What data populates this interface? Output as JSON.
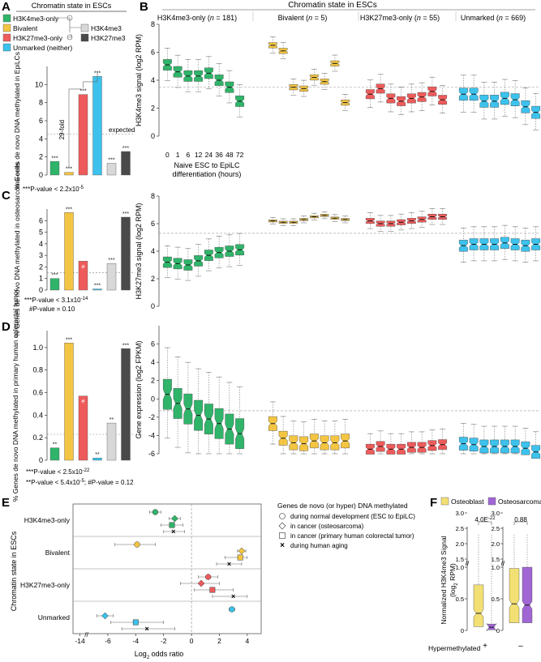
{
  "colors": {
    "green": "#2fb46a",
    "yellow": "#f4c542",
    "red": "#ee5b5b",
    "blue": "#3cc2ec",
    "lightgray": "#d8d8d8",
    "darkgray": "#4a4a4a",
    "purple": "#a066d4",
    "osteoblast": "#f2e074"
  },
  "panelA": {
    "letter": "A",
    "legend_title": "Chromatin state in ESCs",
    "legend": [
      "H3K4me3-only",
      "Bivalent",
      "H3K27me3-only",
      "Unmarked (neither)"
    ],
    "legend_right": [
      "H3K4me3",
      "H3K27me3"
    ],
    "fold_label": "29-fold",
    "expected_label": "expected",
    "pvalue": "***P-value < 2.2x10",
    "pvalue_exp": "-5"
  },
  "panelC": {
    "letter": "C",
    "pvalue1": "***P-value < 3.1x10",
    "pvalue1_exp": "-14",
    "pvalue2": "#P-value = 0.10"
  },
  "panelD": {
    "letter": "D",
    "pvalue1": "***P-value < 2.5x10",
    "pvalue1_exp": "-22",
    "pvalue2": "**P-value < 5.4x10",
    "pvalue2_exp": "-5",
    "pvalue2_tail": "; #P-value = 0.12"
  },
  "panelB": {
    "letter": "B",
    "super_title": "Chromatin state in ESCs",
    "columns": [
      {
        "label": "H3K4me3-only",
        "n": "181"
      },
      {
        "label": "Bivalent",
        "n": "5"
      },
      {
        "label": "H3K27me3-only",
        "n": "55"
      },
      {
        "label": "Unmarked",
        "n": "669"
      }
    ],
    "timepoints": [
      "0",
      "1",
      "6",
      "12",
      "24",
      "36",
      "48",
      "72"
    ],
    "time_axis_title": "Naive ESC to EpiLC",
    "time_axis_title2": "differentiation (hours)"
  },
  "panelE": {
    "letter": "E",
    "legend_title": "Genes de novo (or hyper) DNA methylated",
    "legend": [
      "during normal development (ESC to EpiLC)",
      "in cancer (osteosarcoma)",
      "in cancer (primary human colorectal tumor)",
      "during human aging"
    ],
    "ylabel": "Chromatin state in ESCs",
    "xlabel": "Log",
    "xlabel_sub": "2",
    "xlabel_tail": " odds ratio"
  },
  "panelF": {
    "letter": "F",
    "legend": [
      "Osteoblast",
      "Osteosarcoma"
    ],
    "ylabel": "Normalized H3K4me3 Signal",
    "ylabel2": "(log",
    "ylabel2_sub": "2",
    "ylabel2_tail": " RPM)",
    "pvals": [
      "4.0E",
      "0.88"
    ],
    "pval1_exp": "-22",
    "xtitle": "Hypermethylated",
    "groups": [
      "+",
      "–"
    ]
  },
  "chart_data": [
    {
      "id": "A",
      "type": "bar",
      "ylabel": "% Genes de novo DNA methylated in EpiLCs",
      "ylim": [
        0,
        12
      ],
      "yticks": [
        "0",
        "2",
        "4",
        "6",
        "8",
        "10"
      ],
      "categories": [
        "H3K4me3-only",
        "Bivalent",
        "H3K27me3-only",
        "Unmarked (neither)",
        "H3K4me3",
        "H3K27me3"
      ],
      "values": [
        1.5,
        0.3,
        8.9,
        10.9,
        1.3,
        2.6
      ],
      "expected": 4.5,
      "labels": [
        "***",
        "***",
        "***",
        "***",
        "***",
        "***"
      ]
    },
    {
      "id": "C",
      "type": "bar",
      "ylabel": "% Genes de novo DNA methylated in osteosarcoma cells",
      "ylim": [
        0,
        7
      ],
      "yticks": [
        "0",
        "1",
        "2",
        "3",
        "4",
        "5",
        "6"
      ],
      "categories": [
        "H3K4me3-only",
        "Bivalent",
        "H3K27me3-only",
        "Unmarked (neither)",
        "H3K4me3",
        "H3K27me3"
      ],
      "values": [
        1.0,
        6.7,
        2.5,
        0.1,
        2.3,
        6.3
      ],
      "expected": 1.5,
      "labels": [
        "***",
        "***",
        "#",
        "***",
        "***",
        "***"
      ]
    },
    {
      "id": "D",
      "type": "bar",
      "ylabel": "% Genes de novo DNA methylated in primary human colorectal tumor",
      "ylim": [
        0,
        1.15
      ],
      "yticks": [
        "0",
        "0.2",
        "0.4",
        "0.6",
        "0.8",
        "1.0"
      ],
      "categories": [
        "H3K4me3-only",
        "Bivalent",
        "H3K27me3-only",
        "Unmarked (neither)",
        "H3K4me3",
        "H3K27me3"
      ],
      "values": [
        0.11,
        1.04,
        0.57,
        0.02,
        0.33,
        0.99
      ],
      "expected": 0.23,
      "labels": [
        "**",
        "***",
        "#",
        "**",
        "**",
        "***"
      ]
    },
    {
      "id": "B1",
      "type": "box",
      "ylabel": "H3K4me3 signal (log2 RPM)",
      "ylim": [
        0,
        8
      ],
      "yticks": [
        "0",
        "2",
        "4",
        "6",
        "8"
      ],
      "ref": 3.5,
      "medians": [
        [
          5.1,
          4.6,
          4.3,
          4.3,
          4.5,
          4.0,
          3.5,
          2.5
        ],
        [
          6.5,
          6.1,
          3.5,
          3.4,
          4.2,
          3.9,
          5.2,
          2.4
        ],
        [
          3.0,
          3.4,
          2.7,
          2.5,
          2.7,
          2.8,
          3.2,
          2.6
        ],
        [
          3.0,
          3.0,
          2.5,
          2.5,
          2.7,
          2.6,
          2.1,
          1.7
        ]
      ]
    },
    {
      "id": "B2",
      "type": "box",
      "ylabel": "H3K27me3 signal (log2 RPM)",
      "ylim": [
        0,
        8
      ],
      "yticks": [
        "0",
        "2",
        "4",
        "6",
        "8"
      ],
      "ref": 5.3,
      "medians": [
        [
          3.2,
          3.1,
          3.0,
          3.3,
          3.7,
          3.9,
          4.0,
          4.1
        ],
        [
          6.2,
          6.1,
          6.1,
          6.3,
          6.5,
          6.6,
          6.4,
          6.3
        ],
        [
          6.2,
          6.0,
          6.0,
          6.1,
          6.2,
          6.3,
          6.5,
          6.5
        ],
        [
          4.4,
          4.5,
          4.5,
          4.5,
          4.6,
          4.5,
          4.4,
          4.5
        ]
      ]
    },
    {
      "id": "B3",
      "type": "box",
      "ylabel": "Gene expression (log2 FPKM)",
      "ylim": [
        -6,
        8
      ],
      "yticks": [
        "-6",
        "-4",
        "-2",
        "0",
        "2",
        "4",
        "6"
      ],
      "ref": -1.3,
      "medians": [
        [
          0.5,
          -0.5,
          -1.1,
          -1.8,
          -2.2,
          -2.7,
          -3.3,
          -3.8
        ],
        [
          -2.7,
          -4.3,
          -4.8,
          -4.9,
          -4.6,
          -4.8,
          -4.8,
          -4.6
        ],
        [
          -5.5,
          -5.2,
          -5.5,
          -5.5,
          -5.3,
          -5.3,
          -5.1,
          -5.0
        ],
        [
          -4.9,
          -5.0,
          -5.2,
          -5.2,
          -5.2,
          -5.2,
          -5.4,
          -5.8
        ]
      ]
    },
    {
      "id": "E",
      "type": "scatter",
      "xlabel": "Log2 odds ratio",
      "xticks": [
        "-14",
        "-6",
        "-4",
        "-2",
        "0",
        "2",
        "4"
      ],
      "categories": [
        "H3K4me3-only",
        "Bivalent",
        "H3K27me3-only",
        "Unmarked"
      ],
      "series": [
        {
          "name": "during normal development (ESC to EpiLC)",
          "marker": "circle",
          "values": [
            -2.6,
            -3.9,
            1.2,
            2.9
          ],
          "ci": [
            [
              -3.0,
              -2.2
            ],
            [
              -5.5,
              -2.6
            ],
            [
              0.5,
              1.9
            ],
            [
              2.7,
              3.1
            ]
          ]
        },
        {
          "name": "in cancer (osteosarcoma)",
          "marker": "diamond",
          "values": [
            -1.2,
            3.6,
            0.7,
            -6.2
          ],
          "ci": [
            [
              -1.6,
              -0.8
            ],
            [
              3.3,
              3.9
            ],
            [
              -0.8,
              2.0
            ],
            [
              -6.8,
              -5.6
            ]
          ]
        },
        {
          "name": "in cancer (primary human colorectal tumor)",
          "marker": "square",
          "values": [
            -1.4,
            3.5,
            1.5,
            -4.0
          ],
          "ci": [
            [
              -2.2,
              -0.6
            ],
            [
              2.4,
              4.0
            ],
            [
              0.2,
              3.0
            ],
            [
              -5.8,
              -2.0
            ]
          ]
        },
        {
          "name": "during human aging",
          "marker": "x",
          "values": [
            -1.3,
            2.7,
            3.0,
            -3.2
          ],
          "ci": [
            [
              -2.0,
              -0.5
            ],
            [
              1.8,
              3.6
            ],
            [
              1.5,
              4.0
            ],
            [
              -5.0,
              -1.2
            ]
          ]
        }
      ]
    },
    {
      "id": "F",
      "type": "box",
      "ylabel": "Normalized H3K4me3 Signal (log2 RPM)",
      "yticks": [
        "0",
        "0.5",
        "1.0",
        "1.5",
        "2.0",
        "2.5",
        "3.0"
      ],
      "groups": [
        "+",
        "–"
      ],
      "series": [
        {
          "name": "Osteoblast",
          "medians": [
            0.27,
            0.42
          ],
          "q1": [
            0.06,
            0.12
          ],
          "q3": [
            0.72,
            0.98
          ]
        },
        {
          "name": "Osteosarcoma",
          "medians": [
            0.05,
            0.4
          ],
          "q1": [
            0.01,
            0.12
          ],
          "q3": [
            0.1,
            1.0
          ]
        }
      ],
      "pvalues": [
        "4.0E-22",
        "0.88"
      ]
    }
  ]
}
